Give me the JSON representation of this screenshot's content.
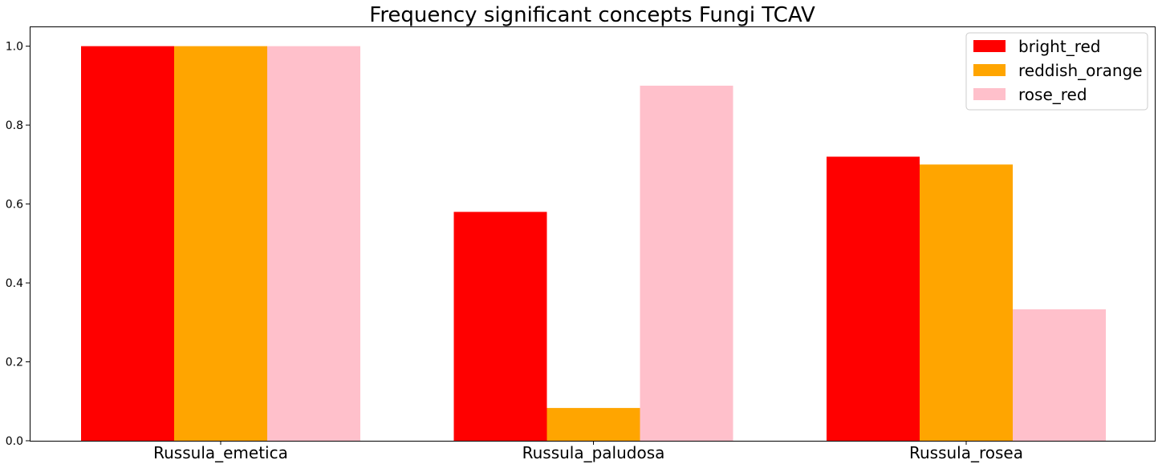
{
  "chart_data": {
    "type": "bar",
    "title": "Frequency significant concepts Fungi TCAV",
    "xlabel": "",
    "ylabel": "",
    "categories": [
      "Russula_emetica",
      "Russula_paludosa",
      "Russula_rosea"
    ],
    "series": [
      {
        "name": "bright_red",
        "color": "#ff0000",
        "values": [
          1.0,
          0.58,
          0.72
        ]
      },
      {
        "name": "reddish_orange",
        "color": "#ffa500",
        "values": [
          1.0,
          0.083,
          0.7
        ]
      },
      {
        "name": "rose_red",
        "color": "#ffc0cb",
        "values": [
          1.0,
          0.9,
          0.333
        ]
      }
    ],
    "ylim": [
      0,
      1.05
    ],
    "yticks": [
      0.0,
      0.2,
      0.4,
      0.6,
      0.8,
      1.0
    ],
    "ytick_labels": [
      "0.0",
      "0.2",
      "0.4",
      "0.6",
      "0.8",
      "1.0"
    ],
    "grid": false,
    "legend_position": "top-right"
  }
}
